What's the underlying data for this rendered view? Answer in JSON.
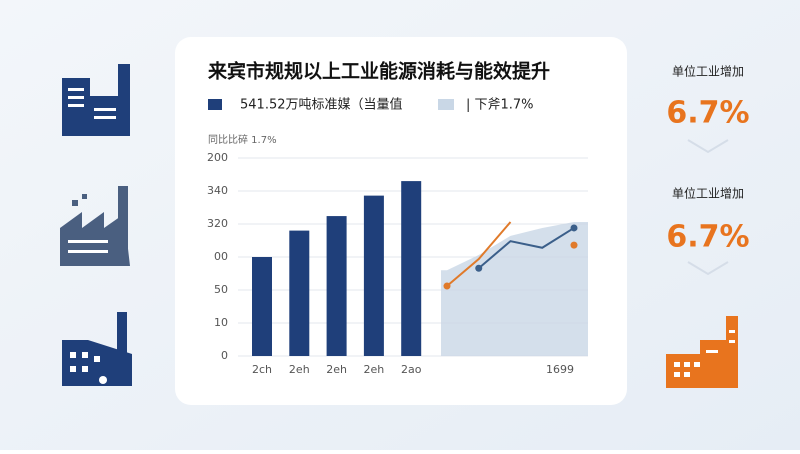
{
  "chart_data": [
    {
      "type": "bar",
      "title": "来宾市规规以上工业能源消耗与能效提升",
      "subtitle": "同比比碎 1.7%",
      "categories": [
        "2ch",
        "2eh",
        "2eh",
        "2eh",
        "2ao"
      ],
      "series": [
        {
          "name": "541.52万吨标准媒（当量值",
          "color": "#1f3f7a",
          "values": [
            150,
            190,
            212,
            243,
            265
          ]
        }
      ],
      "ylim": [
        0,
        300
      ],
      "yticks": [
        0,
        {
          "value": 50,
          "label": "10"
        },
        {
          "value": 100,
          "label": "50"
        },
        {
          "value": 150,
          "label": "00"
        },
        {
          "value": 200,
          "label": "320"
        },
        {
          "value": 250,
          "label": "340"
        },
        {
          "value": 300,
          "label": "200"
        }
      ],
      "grid": true
    },
    {
      "type": "line",
      "categories": [
        null,
        null,
        null,
        null,
        "1699"
      ],
      "ylim": [
        0,
        300
      ],
      "series": [
        {
          "name": "| 下斧1.7%",
          "kind": "area",
          "color": "#c9d7e6",
          "values": [
            130,
            153,
            182,
            194,
            203
          ]
        },
        {
          "color": "#e07a2a",
          "values": [
            106,
            147,
            203,
            null,
            168
          ]
        },
        {
          "color": "#3b5f8a",
          "values": [
            null,
            133,
            174,
            164,
            194
          ]
        }
      ]
    }
  ],
  "side_stats": [
    {
      "label": "单位工业增加",
      "value": "6.7%"
    },
    {
      "label": "单位工业增加",
      "value": "6.7%"
    }
  ]
}
